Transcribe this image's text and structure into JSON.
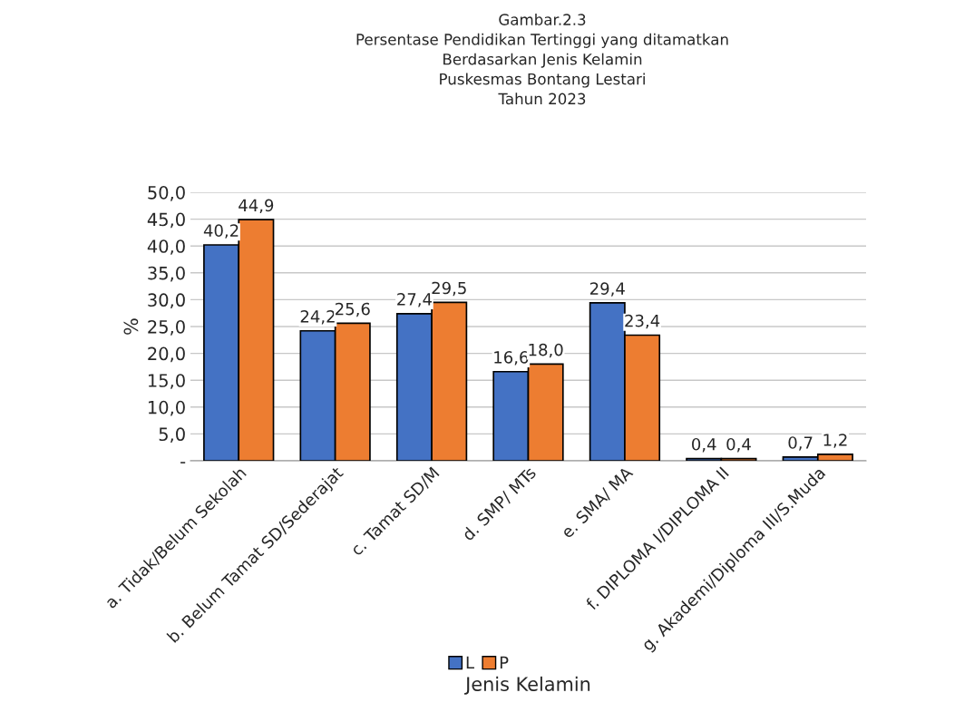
{
  "chart_data": {
    "type": "bar",
    "title": "Gambar.2.3\nPersentase Pendidikan Tertinggi yang ditamatkan\nBerdasarkan Jenis Kelamin\nPuskesmas Bontang Lestari\nTahun 2023",
    "xlabel": "Jenis Kelamin",
    "ylabel": "%",
    "categories": [
      "a. Tidak/Belum Sekolah",
      "b. Belum Tamat SD/Sederajat",
      "c. Tamat SD/M",
      "d. SMP/ MTs",
      "e. SMA/ MA",
      "f. DIPLOMA I/DIPLOMA II",
      "g. Akademi/Diploma III/S.Muda"
    ],
    "series": [
      {
        "name": "L",
        "color": "#4472c4",
        "values": [
          40.2,
          24.2,
          27.4,
          16.6,
          29.4,
          0.4,
          0.7
        ],
        "value_labels": [
          "40,2",
          "24,2",
          "27,4",
          "16,6",
          "29,4",
          "0,4",
          "0,7"
        ]
      },
      {
        "name": "P",
        "color": "#ed7d31",
        "values": [
          44.9,
          25.6,
          29.5,
          18.0,
          23.4,
          0.4,
          1.2
        ],
        "value_labels": [
          "44,9",
          "25,6",
          "29,5",
          "18,0",
          "23,4",
          "0,4",
          "1,2"
        ]
      }
    ],
    "ylim": [
      0,
      50
    ],
    "yticks": [
      {
        "value": 0,
        "label": "-"
      },
      {
        "value": 5,
        "label": "5,0"
      },
      {
        "value": 10,
        "label": "10,0"
      },
      {
        "value": 15,
        "label": "15,0"
      },
      {
        "value": 20,
        "label": "20,0"
      },
      {
        "value": 25,
        "label": "25,0"
      },
      {
        "value": 30,
        "label": "30,0"
      },
      {
        "value": 35,
        "label": "35,0"
      },
      {
        "value": 40,
        "label": "40,0"
      },
      {
        "value": 45,
        "label": "45,0"
      },
      {
        "value": 50,
        "label": "50,0"
      }
    ],
    "grid": "y",
    "legend": "bottom"
  }
}
